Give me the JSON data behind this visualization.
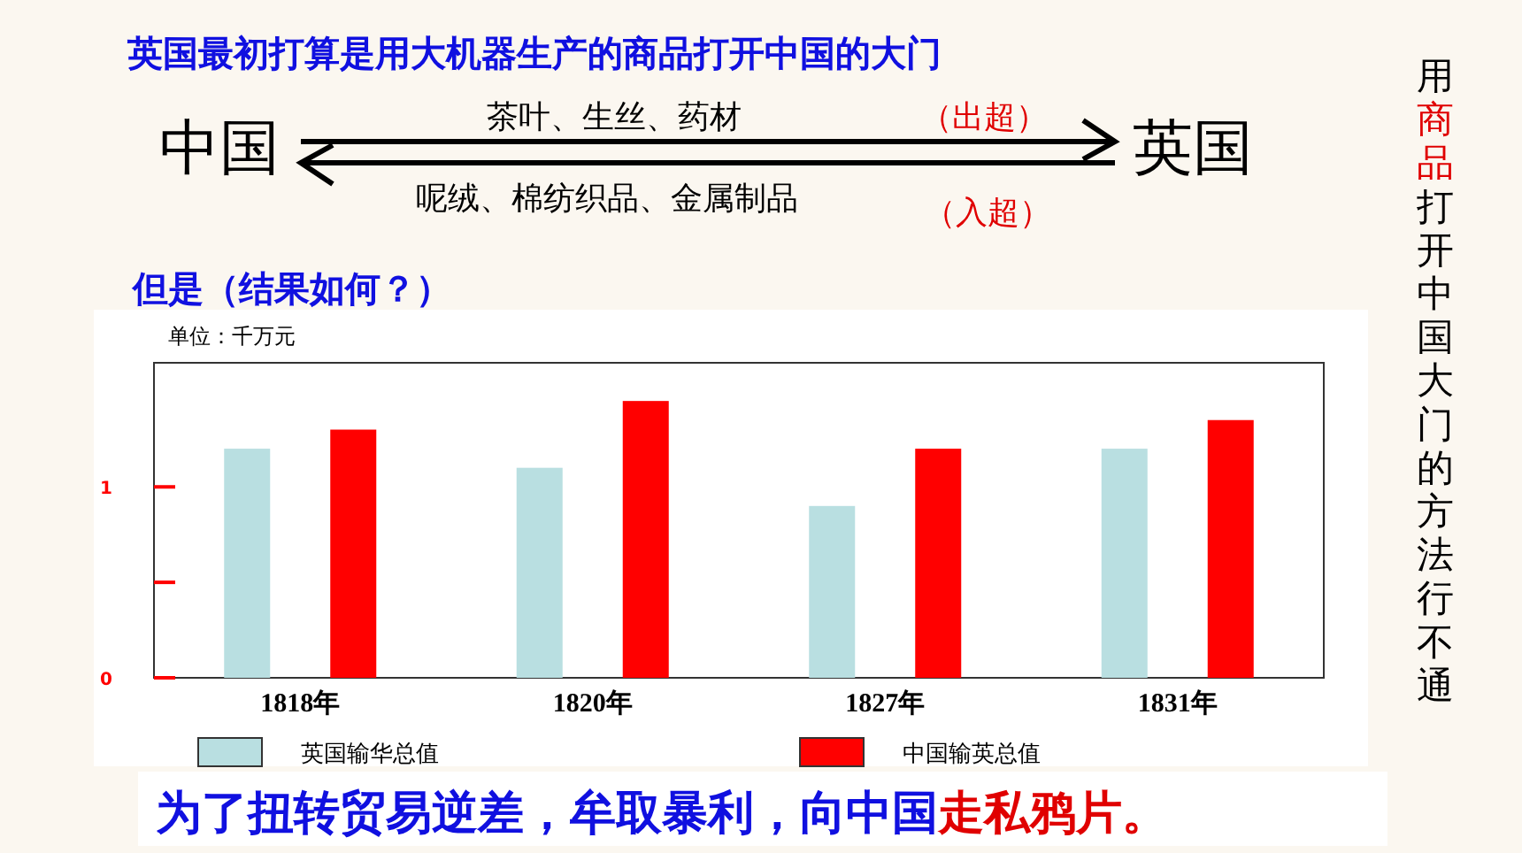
{
  "chart_data": {
    "type": "bar",
    "title": "英国最初打算是用大机器生产的商品打开中国的大门",
    "subtitle": "但是（结果如何？）",
    "ylabel": "单位：千万元",
    "categories": [
      "1818年",
      "1820年",
      "1827年",
      "1831年"
    ],
    "series": [
      {
        "name": "英国输华总值",
        "color": "#b9dfe1",
        "values": [
          1.2,
          1.1,
          0.9,
          1.2
        ]
      },
      {
        "name": "中国输英总值",
        "color": "#ff0000",
        "values": [
          1.3,
          1.45,
          1.2,
          1.35
        ]
      }
    ],
    "ylim": [
      0,
      1.65
    ],
    "yticks": [
      0,
      {
        "value": 0.5,
        "label": null
      },
      1
    ],
    "legend": "bottom",
    "annotations": [
      "中国",
      "英国",
      "茶叶、生丝、药材",
      "（出超）",
      "呢绒、棉纺织品、金属制品",
      "（入超）",
      "用",
      "商品",
      "打开中国大门的方法行不通",
      "为了扭转贸易逆差，牟取暴利，向中国",
      "走私鸦片。"
    ]
  }
}
